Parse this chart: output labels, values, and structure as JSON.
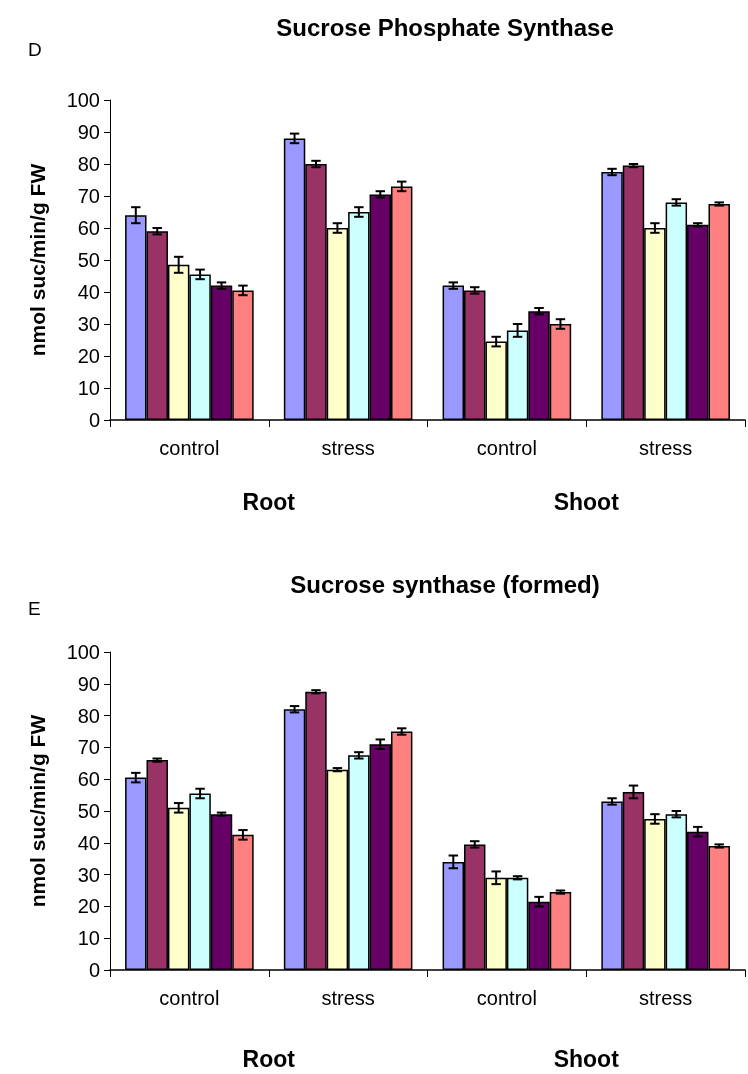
{
  "chart_data": [
    {
      "type": "bar",
      "title": "Sucrose Phosphate Synthase",
      "ylabel": "nmol suc/min/g FW",
      "annotations": [
        "D",
        "Root",
        "Shoot"
      ],
      "categories": [
        "control",
        "stress",
        "control",
        "stress"
      ],
      "ylim": [
        0,
        100
      ],
      "yticks": [
        0,
        10,
        20,
        30,
        40,
        50,
        60,
        70,
        80,
        90,
        100
      ],
      "series": [
        {
          "color": "#9999ff",
          "values": [
            64,
            88,
            42,
            77.5
          ],
          "errors": [
            2.5,
            1.5,
            1,
            1
          ]
        },
        {
          "color": "#993366",
          "values": [
            59,
            80,
            40.5,
            79.5
          ],
          "errors": [
            1,
            1,
            1,
            0.5
          ]
        },
        {
          "color": "#ffffcc",
          "values": [
            48.5,
            60,
            24.5,
            60
          ],
          "errors": [
            2.5,
            1.5,
            1.5,
            1.5
          ]
        },
        {
          "color": "#ccffff",
          "values": [
            45.5,
            65,
            28,
            68
          ],
          "errors": [
            1.5,
            1.5,
            2,
            1
          ]
        },
        {
          "color": "#660066",
          "values": [
            42,
            70.5,
            34,
            61
          ],
          "errors": [
            1,
            1,
            1,
            0.5
          ]
        },
        {
          "color": "#ff8080",
          "values": [
            40.5,
            73,
            30,
            67.5
          ],
          "errors": [
            1.5,
            1.5,
            1.5,
            0.5
          ]
        }
      ]
    },
    {
      "type": "bar",
      "title": "Sucrose synthase (formed)",
      "ylabel": "nmol suc/min/g FW",
      "annotations": [
        "E",
        "Root",
        "Shoot"
      ],
      "categories": [
        "control",
        "stress",
        "control",
        "stress"
      ],
      "ylim": [
        0,
        100
      ],
      "yticks": [
        0,
        10,
        20,
        30,
        40,
        50,
        60,
        70,
        80,
        90,
        100
      ],
      "series": [
        {
          "color": "#9999ff",
          "values": [
            60.5,
            82,
            34,
            53
          ],
          "errors": [
            1.5,
            1,
            2,
            1
          ]
        },
        {
          "color": "#993366",
          "values": [
            66,
            87.5,
            39.5,
            56
          ],
          "errors": [
            0.5,
            0.5,
            1,
            2
          ]
        },
        {
          "color": "#ffffcc",
          "values": [
            51,
            63,
            29,
            47.5
          ],
          "errors": [
            1.5,
            0.5,
            2,
            1.5
          ]
        },
        {
          "color": "#ccffff",
          "values": [
            55.5,
            67.5,
            29,
            49
          ],
          "errors": [
            1.5,
            1,
            0.5,
            1
          ]
        },
        {
          "color": "#660066",
          "values": [
            49,
            71,
            21.5,
            43.5
          ],
          "errors": [
            0.5,
            1.5,
            1.5,
            1.5
          ]
        },
        {
          "color": "#ff8080",
          "values": [
            42.5,
            75,
            24.5,
            39
          ],
          "errors": [
            1.5,
            1,
            0.5,
            0.5
          ]
        }
      ]
    }
  ]
}
